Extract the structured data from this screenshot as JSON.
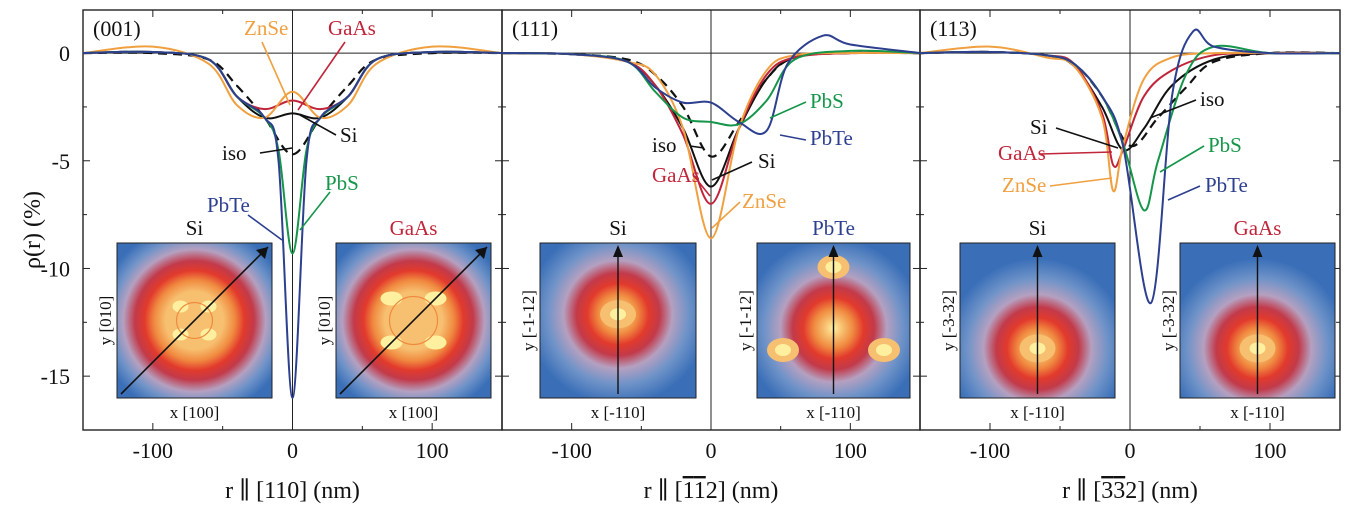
{
  "ylabel": "ρ(r) (%)",
  "yticks": [
    "0",
    "-5",
    "-10",
    "-15"
  ],
  "xticks": [
    "-100",
    "0",
    "100"
  ],
  "colors": {
    "Si": "#111111",
    "iso": "#111111",
    "GaAs": "#c0253a",
    "ZnSe": "#f0a040",
    "PbS": "#15964a",
    "PbTe": "#2d3f8f"
  },
  "map_palette": [
    "#3a6fb8",
    "#6f93c8",
    "#b5a0c0",
    "#c23a4a",
    "#e23a2c",
    "#f08a40",
    "#f7c070",
    "#fff0a0"
  ],
  "chart_data": [
    {
      "type": "line",
      "panel_label": "(001)",
      "xlabel_main": "r ∥ [110] (nm)",
      "xlim": [
        -150,
        150
      ],
      "ylim": [
        -17.5,
        2
      ],
      "series": [
        {
          "name": "Si",
          "x": [
            -150,
            -100,
            -60,
            -40,
            -20,
            0,
            20,
            40,
            60,
            100,
            150
          ],
          "y": [
            0,
            0.05,
            -0.3,
            -2.0,
            -3.0,
            -2.8,
            -3.0,
            -2.0,
            -0.3,
            0.05,
            0
          ]
        },
        {
          "name": "iso",
          "x": [
            -150,
            -100,
            -60,
            -40,
            -20,
            0,
            20,
            40,
            60,
            100,
            150
          ],
          "y": [
            0,
            0,
            -0.3,
            -1.5,
            -3.0,
            -4.7,
            -3.0,
            -1.5,
            -0.3,
            0,
            0
          ]
        },
        {
          "name": "GaAs",
          "x": [
            -150,
            -100,
            -60,
            -40,
            -20,
            0,
            20,
            40,
            60,
            100,
            150
          ],
          "y": [
            0,
            0.05,
            -0.3,
            -2.0,
            -2.6,
            -2.2,
            -2.6,
            -2.0,
            -0.3,
            0.05,
            0
          ]
        },
        {
          "name": "ZnSe",
          "x": [
            -150,
            -100,
            -60,
            -40,
            -20,
            0,
            20,
            40,
            60,
            100,
            150
          ],
          "y": [
            0,
            0.3,
            -0.5,
            -2.4,
            -3.0,
            -1.8,
            -3.0,
            -2.4,
            -0.5,
            0.3,
            0
          ]
        },
        {
          "name": "PbS",
          "x": [
            -150,
            -100,
            -60,
            -40,
            -20,
            -10,
            0,
            10,
            20,
            40,
            60,
            100,
            150
          ],
          "y": [
            0,
            0.05,
            -0.3,
            -2.0,
            -3.0,
            -4.5,
            -9.3,
            -4.5,
            -3.0,
            -2.0,
            -0.3,
            0.05,
            0
          ]
        },
        {
          "name": "PbTe",
          "x": [
            -150,
            -100,
            -60,
            -40,
            -20,
            -10,
            0,
            10,
            20,
            40,
            60,
            100,
            150
          ],
          "y": [
            0,
            0.05,
            -0.3,
            -2.0,
            -3.0,
            -5.0,
            -16.0,
            -5.0,
            -3.0,
            -2.0,
            -0.3,
            0.05,
            0
          ]
        }
      ],
      "labels": [
        {
          "text": "ZnSe",
          "series": "ZnSe"
        },
        {
          "text": "GaAs",
          "series": "GaAs"
        },
        {
          "text": "Si",
          "series": "Si"
        },
        {
          "text": "iso",
          "series": "iso"
        },
        {
          "text": "PbS",
          "series": "PbS"
        },
        {
          "text": "PbTe",
          "series": "PbTe"
        }
      ],
      "insets": [
        {
          "title": "Si",
          "series": "Si",
          "ylabel": "y [010]",
          "xlabel": "x [100]"
        },
        {
          "title": "GaAs",
          "series": "GaAs",
          "ylabel": "y [010]",
          "xlabel": "x [100]"
        }
      ]
    },
    {
      "type": "line",
      "panel_label": "(111)",
      "xlabel_main": "r ∥ [",
      "xlabel_bars": [
        "1",
        "1"
      ],
      "xlabel_plain": "2",
      "xlabel_unit": "] (nm)",
      "xlim": [
        -150,
        150
      ],
      "ylim": [
        -17.5,
        2
      ],
      "series": [
        {
          "name": "Si",
          "x": [
            -150,
            -100,
            -60,
            -40,
            -20,
            0,
            20,
            40,
            60,
            100,
            150
          ],
          "y": [
            0,
            -0.05,
            -0.4,
            -1.5,
            -3.5,
            -6.2,
            -3.5,
            -1.2,
            -0.2,
            0,
            0
          ]
        },
        {
          "name": "iso",
          "x": [
            -150,
            -100,
            -60,
            -40,
            -20,
            0,
            20,
            40,
            60,
            100,
            150
          ],
          "y": [
            0,
            -0.05,
            -0.3,
            -1.0,
            -2.5,
            -4.8,
            -3.2,
            -1.2,
            -0.2,
            0,
            0
          ]
        },
        {
          "name": "GaAs",
          "x": [
            -150,
            -100,
            -60,
            -40,
            -20,
            0,
            20,
            40,
            60,
            100,
            150
          ],
          "y": [
            0,
            -0.05,
            -0.4,
            -1.5,
            -3.8,
            -7.0,
            -3.5,
            -1.0,
            -0.2,
            0,
            0
          ]
        },
        {
          "name": "ZnSe",
          "x": [
            -150,
            -100,
            -60,
            -40,
            -20,
            0,
            20,
            40,
            60,
            100,
            150
          ],
          "y": [
            0,
            -0.05,
            -0.4,
            -1.0,
            -3.5,
            -8.6,
            -3.5,
            -0.8,
            -0.1,
            0,
            0
          ]
        },
        {
          "name": "PbS",
          "x": [
            -150,
            -100,
            -60,
            -40,
            -20,
            0,
            20,
            40,
            60,
            100,
            150
          ],
          "y": [
            0,
            -0.05,
            -0.4,
            -1.8,
            -3.0,
            -3.2,
            -3.3,
            -2.2,
            -0.3,
            0.1,
            0
          ]
        },
        {
          "name": "PbTe",
          "x": [
            -150,
            -100,
            -60,
            -40,
            -20,
            0,
            20,
            40,
            55,
            80,
            100,
            150
          ],
          "y": [
            0,
            -0.05,
            -0.4,
            -1.6,
            -2.3,
            -2.3,
            -3.2,
            -3.6,
            -0.5,
            0.8,
            0.4,
            0
          ]
        }
      ],
      "labels": [
        {
          "text": "PbS",
          "series": "PbS"
        },
        {
          "text": "PbTe",
          "series": "PbTe"
        },
        {
          "text": "iso",
          "series": "iso"
        },
        {
          "text": "Si",
          "series": "Si"
        },
        {
          "text": "GaAs",
          "series": "GaAs"
        },
        {
          "text": "ZnSe",
          "series": "ZnSe"
        }
      ],
      "insets": [
        {
          "title": "Si",
          "series": "Si",
          "ylabel": "y [-1-12]",
          "xlabel": "x [-110]"
        },
        {
          "title": "PbTe",
          "series": "PbTe",
          "ylabel": "y [-1-12]",
          "xlabel": "x [-110]"
        }
      ]
    },
    {
      "type": "line",
      "panel_label": "(113)",
      "xlabel_main": "r ∥ [",
      "xlabel_bars": [
        "3",
        "3"
      ],
      "xlabel_plain": "2",
      "xlabel_unit": "] (nm)",
      "xlim": [
        -150,
        150
      ],
      "ylim": [
        -17.5,
        2
      ],
      "series": [
        {
          "name": "Si",
          "x": [
            -150,
            -100,
            -60,
            -40,
            -20,
            -5,
            10,
            30,
            60,
            100,
            150
          ],
          "y": [
            0,
            0.05,
            -0.1,
            -0.6,
            -2.5,
            -4.5,
            -3.5,
            -1.5,
            -0.3,
            0,
            0
          ]
        },
        {
          "name": "iso",
          "x": [
            -150,
            -100,
            -60,
            -40,
            -20,
            0,
            20,
            40,
            60,
            100,
            150
          ],
          "y": [
            0,
            0.05,
            -0.1,
            -0.5,
            -2.0,
            -4.3,
            -3.0,
            -1.6,
            -0.4,
            0,
            0
          ]
        },
        {
          "name": "GaAs",
          "x": [
            -150,
            -100,
            -60,
            -40,
            -20,
            -12,
            -5,
            10,
            30,
            60,
            100,
            150
          ],
          "y": [
            0,
            0.05,
            -0.1,
            -0.5,
            -2.8,
            -5.2,
            -4.5,
            -2.0,
            -0.8,
            -0.1,
            0,
            0
          ]
        },
        {
          "name": "ZnSe",
          "x": [
            -150,
            -100,
            -60,
            -40,
            -20,
            -12,
            -5,
            10,
            30,
            60,
            100,
            150
          ],
          "y": [
            0,
            0.3,
            -0.2,
            -0.6,
            -3.0,
            -6.4,
            -4.3,
            -1.2,
            -0.2,
            0,
            0,
            0
          ]
        },
        {
          "name": "PbS",
          "x": [
            -150,
            -100,
            -60,
            -40,
            -20,
            -5,
            10,
            20,
            40,
            60,
            100,
            150
          ],
          "y": [
            0,
            0.05,
            -0.1,
            -0.5,
            -2.0,
            -4.2,
            -7.3,
            -5.0,
            -1.0,
            0.3,
            0,
            0
          ]
        },
        {
          "name": "PbTe",
          "x": [
            -150,
            -100,
            -60,
            -40,
            -20,
            -5,
            15,
            30,
            45,
            60,
            100,
            150
          ],
          "y": [
            0,
            0.05,
            -0.1,
            -0.5,
            -2.0,
            -4.3,
            -11.6,
            -2.0,
            1.0,
            0.3,
            0,
            0
          ]
        }
      ],
      "labels": [
        {
          "text": "iso",
          "series": "iso"
        },
        {
          "text": "Si",
          "series": "Si"
        },
        {
          "text": "GaAs",
          "series": "GaAs"
        },
        {
          "text": "PbS",
          "series": "PbS"
        },
        {
          "text": "ZnSe",
          "series": "ZnSe"
        },
        {
          "text": "PbTe",
          "series": "PbTe"
        }
      ],
      "insets": [
        {
          "title": "Si",
          "series": "Si",
          "ylabel": "y [-3-32]",
          "xlabel": "x [-110]"
        },
        {
          "title": "GaAs",
          "series": "GaAs",
          "ylabel": "y [-3-32]",
          "xlabel": "x [-110]"
        }
      ]
    }
  ]
}
